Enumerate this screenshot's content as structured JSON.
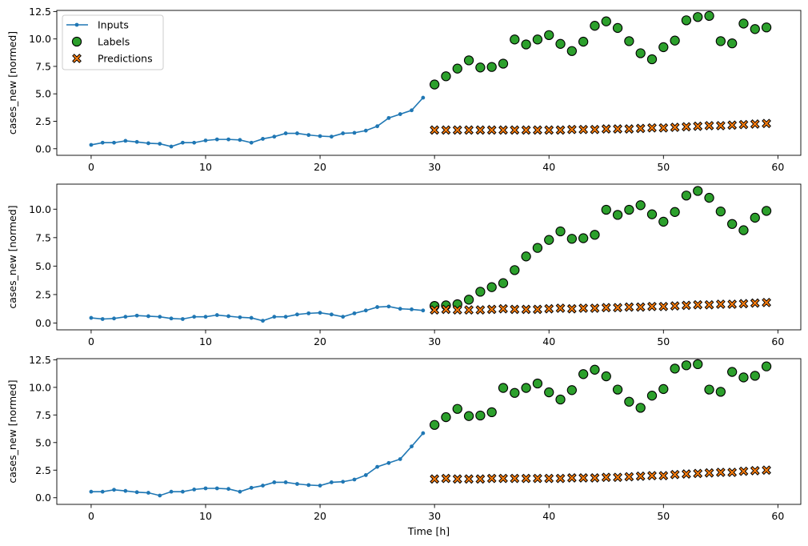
{
  "chart_data": [
    {
      "type": "scatter",
      "ylabel": "cases_new [normed]",
      "xlabel": "",
      "xlim": [
        -3,
        62
      ],
      "ylim": [
        -0.6,
        12.6
      ],
      "xticks": [
        0,
        10,
        20,
        30,
        40,
        50,
        60
      ],
      "yticks": [
        0.0,
        2.5,
        5.0,
        7.5,
        10.0,
        12.5
      ],
      "ytick_labels": [
        "0.0",
        "2.5",
        "5.0",
        "7.5",
        "10.0",
        "12.5"
      ],
      "legend": {
        "position": "top-left",
        "entries": [
          "Inputs",
          "Labels",
          "Predictions"
        ]
      },
      "series": [
        {
          "name": "Inputs",
          "kind": "line-markers",
          "color": "#1f77b4",
          "x": [
            0,
            1,
            2,
            3,
            4,
            5,
            6,
            7,
            8,
            9,
            10,
            11,
            12,
            13,
            14,
            15,
            16,
            17,
            18,
            19,
            20,
            21,
            22,
            23,
            24,
            25,
            26,
            27,
            28,
            29
          ],
          "y": [
            0.35,
            0.55,
            0.55,
            0.72,
            0.62,
            0.5,
            0.45,
            0.2,
            0.55,
            0.55,
            0.75,
            0.85,
            0.85,
            0.8,
            0.55,
            0.9,
            1.1,
            1.4,
            1.4,
            1.25,
            1.15,
            1.1,
            1.4,
            1.45,
            1.65,
            2.05,
            2.8,
            3.15,
            3.5,
            4.65
          ]
        },
        {
          "name": "Labels",
          "kind": "scatter-circle",
          "color": "#2ca02c",
          "x": [
            30,
            31,
            32,
            33,
            34,
            35,
            36,
            37,
            38,
            39,
            40,
            41,
            42,
            43,
            44,
            45,
            46,
            47,
            48,
            49,
            50,
            51,
            52,
            53,
            54,
            55,
            56,
            57,
            58,
            59
          ],
          "y": [
            5.85,
            6.6,
            7.3,
            8.05,
            7.4,
            7.45,
            7.75,
            9.95,
            9.5,
            9.95,
            10.35,
            9.55,
            8.9,
            9.75,
            11.2,
            11.6,
            11.0,
            9.8,
            8.7,
            8.15,
            9.25,
            9.85,
            11.7,
            12.0,
            12.1,
            9.8,
            9.6,
            11.4,
            10.9,
            11.05
          ]
        },
        {
          "name": "Predictions",
          "kind": "scatter-x",
          "color": "#ff7f0e",
          "x": [
            30,
            31,
            32,
            33,
            34,
            35,
            36,
            37,
            38,
            39,
            40,
            41,
            42,
            43,
            44,
            45,
            46,
            47,
            48,
            49,
            50,
            51,
            52,
            53,
            54,
            55,
            56,
            57,
            58,
            59
          ],
          "y": [
            1.7,
            1.7,
            1.7,
            1.7,
            1.7,
            1.7,
            1.7,
            1.7,
            1.7,
            1.7,
            1.7,
            1.7,
            1.75,
            1.75,
            1.75,
            1.8,
            1.8,
            1.8,
            1.85,
            1.9,
            1.9,
            1.95,
            2.0,
            2.05,
            2.1,
            2.1,
            2.15,
            2.2,
            2.25,
            2.3
          ]
        }
      ]
    },
    {
      "type": "scatter",
      "ylabel": "cases_new [normed]",
      "xlabel": "",
      "xlim": [
        -3,
        62
      ],
      "ylim": [
        -0.6,
        12.2
      ],
      "xticks": [
        0,
        10,
        20,
        30,
        40,
        50,
        60
      ],
      "yticks": [
        0.0,
        2.5,
        5.0,
        7.5,
        10.0
      ],
      "ytick_labels": [
        "0.0",
        "2.5",
        "5.0",
        "7.5",
        "10.0"
      ],
      "legend": null,
      "series": [
        {
          "name": "Inputs",
          "kind": "line-markers",
          "color": "#1f77b4",
          "x": [
            0,
            1,
            2,
            3,
            4,
            5,
            6,
            7,
            8,
            9,
            10,
            11,
            12,
            13,
            14,
            15,
            16,
            17,
            18,
            19,
            20,
            21,
            22,
            23,
            24,
            25,
            26,
            27,
            28,
            29
          ],
          "y": [
            0.45,
            0.35,
            0.4,
            0.55,
            0.65,
            0.6,
            0.55,
            0.4,
            0.35,
            0.55,
            0.55,
            0.7,
            0.6,
            0.5,
            0.45,
            0.2,
            0.55,
            0.55,
            0.75,
            0.85,
            0.9,
            0.75,
            0.55,
            0.85,
            1.1,
            1.4,
            1.45,
            1.25,
            1.2,
            1.1
          ]
        },
        {
          "name": "Labels",
          "kind": "scatter-circle",
          "color": "#2ca02c",
          "x": [
            30,
            31,
            32,
            33,
            34,
            35,
            36,
            37,
            38,
            39,
            40,
            41,
            42,
            43,
            44,
            45,
            46,
            47,
            48,
            49,
            50,
            51,
            52,
            53,
            54,
            55,
            56,
            57,
            58,
            59
          ],
          "y": [
            1.5,
            1.55,
            1.65,
            2.05,
            2.75,
            3.15,
            3.5,
            4.65,
            5.85,
            6.6,
            7.3,
            8.05,
            7.4,
            7.45,
            7.75,
            9.95,
            9.5,
            9.95,
            10.35,
            9.55,
            8.9,
            9.75,
            11.2,
            11.6,
            11.0,
            9.8,
            8.7,
            8.15,
            9.25,
            9.85
          ]
        },
        {
          "name": "Predictions",
          "kind": "scatter-x",
          "color": "#ff7f0e",
          "x": [
            30,
            31,
            32,
            33,
            34,
            35,
            36,
            37,
            38,
            39,
            40,
            41,
            42,
            43,
            44,
            45,
            46,
            47,
            48,
            49,
            50,
            51,
            52,
            53,
            54,
            55,
            56,
            57,
            58,
            59
          ],
          "y": [
            1.15,
            1.2,
            1.15,
            1.15,
            1.15,
            1.2,
            1.25,
            1.2,
            1.2,
            1.2,
            1.25,
            1.3,
            1.25,
            1.3,
            1.3,
            1.35,
            1.35,
            1.4,
            1.4,
            1.45,
            1.45,
            1.5,
            1.55,
            1.6,
            1.6,
            1.65,
            1.65,
            1.7,
            1.75,
            1.8
          ]
        }
      ]
    },
    {
      "type": "scatter",
      "ylabel": "cases_new [normed]",
      "xlabel": "Time [h]",
      "xlim": [
        -3,
        62
      ],
      "ylim": [
        -0.6,
        12.6
      ],
      "xticks": [
        0,
        10,
        20,
        30,
        40,
        50,
        60
      ],
      "yticks": [
        0.0,
        2.5,
        5.0,
        7.5,
        10.0,
        12.5
      ],
      "ytick_labels": [
        "0.0",
        "2.5",
        "5.0",
        "7.5",
        "10.0",
        "12.5"
      ],
      "legend": null,
      "series": [
        {
          "name": "Inputs",
          "kind": "line-markers",
          "color": "#1f77b4",
          "x": [
            0,
            1,
            2,
            3,
            4,
            5,
            6,
            7,
            8,
            9,
            10,
            11,
            12,
            13,
            14,
            15,
            16,
            17,
            18,
            19,
            20,
            21,
            22,
            23,
            24,
            25,
            26,
            27,
            28,
            29
          ],
          "y": [
            0.55,
            0.55,
            0.72,
            0.62,
            0.5,
            0.45,
            0.2,
            0.55,
            0.55,
            0.75,
            0.85,
            0.85,
            0.8,
            0.55,
            0.9,
            1.1,
            1.4,
            1.4,
            1.25,
            1.15,
            1.1,
            1.4,
            1.45,
            1.65,
            2.05,
            2.8,
            3.15,
            3.5,
            4.65,
            5.85
          ]
        },
        {
          "name": "Labels",
          "kind": "scatter-circle",
          "color": "#2ca02c",
          "x": [
            30,
            31,
            32,
            33,
            34,
            35,
            36,
            37,
            38,
            39,
            40,
            41,
            42,
            43,
            44,
            45,
            46,
            47,
            48,
            49,
            50,
            51,
            52,
            53,
            54,
            55,
            56,
            57,
            58,
            59
          ],
          "y": [
            6.6,
            7.3,
            8.05,
            7.4,
            7.45,
            7.75,
            9.95,
            9.5,
            9.95,
            10.35,
            9.55,
            8.9,
            9.75,
            11.2,
            11.6,
            11.0,
            9.8,
            8.7,
            8.15,
            9.25,
            9.85,
            11.7,
            12.0,
            12.1,
            9.8,
            9.6,
            11.4,
            10.9,
            11.05,
            11.9
          ]
        },
        {
          "name": "Predictions",
          "kind": "scatter-x",
          "color": "#ff7f0e",
          "x": [
            30,
            31,
            32,
            33,
            34,
            35,
            36,
            37,
            38,
            39,
            40,
            41,
            42,
            43,
            44,
            45,
            46,
            47,
            48,
            49,
            50,
            51,
            52,
            53,
            54,
            55,
            56,
            57,
            58,
            59
          ],
          "y": [
            1.7,
            1.75,
            1.7,
            1.7,
            1.7,
            1.75,
            1.75,
            1.75,
            1.75,
            1.75,
            1.75,
            1.75,
            1.8,
            1.8,
            1.8,
            1.85,
            1.85,
            1.9,
            1.95,
            2.0,
            2.0,
            2.1,
            2.15,
            2.2,
            2.25,
            2.3,
            2.3,
            2.4,
            2.45,
            2.5
          ]
        }
      ]
    }
  ]
}
